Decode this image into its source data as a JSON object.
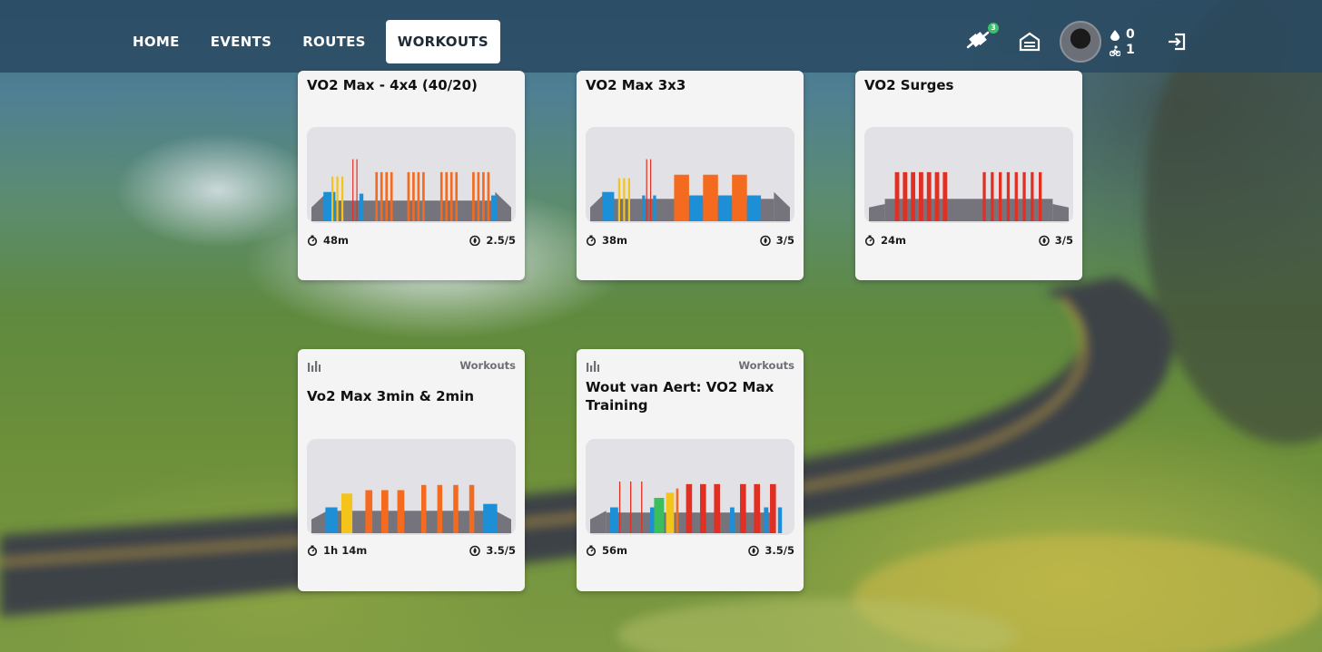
{
  "nav": {
    "items": [
      {
        "label": "HOME",
        "active": false
      },
      {
        "label": "EVENTS",
        "active": false
      },
      {
        "label": "ROUTES",
        "active": false
      },
      {
        "label": "WORKOUTS",
        "active": true
      }
    ]
  },
  "header": {
    "pair_badge": "3",
    "drops": "0",
    "rides": "1",
    "icons": [
      "pairing-icon",
      "garage-icon",
      "avatar",
      "drops-icon",
      "ride-icon",
      "logout-icon"
    ]
  },
  "zone_colors": {
    "z1": "#75747d",
    "z2": "#1c8fd6",
    "z3": "#3cbe5c",
    "z4": "#f4c41b",
    "z5": "#f46a1f",
    "z6": "#e03024"
  },
  "cards": [
    {
      "title": "VO2 Max - 4x4 (40/20)",
      "category": "",
      "duration": "48m",
      "difficulty": "2.5/5",
      "profile": {
        "ramp_start": true,
        "ramp_end": true,
        "base_level": 0.34,
        "mid_level": 0.24,
        "blocks": [
          {
            "at": 0.06,
            "w": 0.06,
            "level": 0.34,
            "zone": "z2"
          },
          {
            "at": 0.1,
            "w": 0.01,
            "level": 0.52,
            "zone": "z4"
          },
          {
            "at": 0.125,
            "w": 0.01,
            "level": 0.52,
            "zone": "z4"
          },
          {
            "at": 0.15,
            "w": 0.01,
            "level": 0.52,
            "zone": "z4"
          },
          {
            "at": 0.205,
            "w": 0.005,
            "level": 0.72,
            "zone": "z6"
          },
          {
            "at": 0.225,
            "w": 0.005,
            "level": 0.72,
            "zone": "z6"
          },
          {
            "at": 0.24,
            "w": 0.02,
            "level": 0.32,
            "zone": "z2"
          },
          {
            "at": 0.32,
            "w": 0.012,
            "level": 0.57,
            "zone": "z5"
          },
          {
            "at": 0.345,
            "w": 0.012,
            "level": 0.57,
            "zone": "z5"
          },
          {
            "at": 0.37,
            "w": 0.012,
            "level": 0.57,
            "zone": "z5"
          },
          {
            "at": 0.395,
            "w": 0.012,
            "level": 0.57,
            "zone": "z5"
          },
          {
            "at": 0.48,
            "w": 0.012,
            "level": 0.57,
            "zone": "z5"
          },
          {
            "at": 0.505,
            "w": 0.012,
            "level": 0.57,
            "zone": "z5"
          },
          {
            "at": 0.53,
            "w": 0.012,
            "level": 0.57,
            "zone": "z5"
          },
          {
            "at": 0.555,
            "w": 0.012,
            "level": 0.57,
            "zone": "z5"
          },
          {
            "at": 0.645,
            "w": 0.012,
            "level": 0.57,
            "zone": "z5"
          },
          {
            "at": 0.67,
            "w": 0.012,
            "level": 0.57,
            "zone": "z5"
          },
          {
            "at": 0.695,
            "w": 0.012,
            "level": 0.57,
            "zone": "z5"
          },
          {
            "at": 0.72,
            "w": 0.012,
            "level": 0.57,
            "zone": "z5"
          },
          {
            "at": 0.805,
            "w": 0.012,
            "level": 0.57,
            "zone": "z5"
          },
          {
            "at": 0.83,
            "w": 0.012,
            "level": 0.57,
            "zone": "z5"
          },
          {
            "at": 0.855,
            "w": 0.012,
            "level": 0.57,
            "zone": "z5"
          },
          {
            "at": 0.88,
            "w": 0.012,
            "level": 0.57,
            "zone": "z5"
          },
          {
            "at": 0.9,
            "w": 0.03,
            "level": 0.3,
            "zone": "z2"
          }
        ]
      }
    },
    {
      "title": "VO2 Max 3x3",
      "category": "",
      "duration": "38m",
      "difficulty": "3/5",
      "profile": {
        "ramp_start": true,
        "ramp_end": true,
        "base_level": 0.34,
        "mid_level": 0.26,
        "blocks": [
          {
            "at": 0.06,
            "w": 0.06,
            "level": 0.34,
            "zone": "z2"
          },
          {
            "at": 0.14,
            "w": 0.01,
            "level": 0.5,
            "zone": "z4"
          },
          {
            "at": 0.165,
            "w": 0.01,
            "level": 0.5,
            "zone": "z4"
          },
          {
            "at": 0.19,
            "w": 0.01,
            "level": 0.5,
            "zone": "z4"
          },
          {
            "at": 0.28,
            "w": 0.005,
            "level": 0.72,
            "zone": "z6"
          },
          {
            "at": 0.3,
            "w": 0.005,
            "level": 0.72,
            "zone": "z6"
          },
          {
            "at": 0.26,
            "w": 0.015,
            "level": 0.3,
            "zone": "z2"
          },
          {
            "at": 0.315,
            "w": 0.015,
            "level": 0.3,
            "zone": "z2"
          },
          {
            "at": 0.42,
            "w": 0.075,
            "level": 0.54,
            "zone": "z5"
          },
          {
            "at": 0.495,
            "w": 0.07,
            "level": 0.3,
            "zone": "z2"
          },
          {
            "at": 0.565,
            "w": 0.075,
            "level": 0.54,
            "zone": "z5"
          },
          {
            "at": 0.64,
            "w": 0.07,
            "level": 0.3,
            "zone": "z2"
          },
          {
            "at": 0.71,
            "w": 0.075,
            "level": 0.54,
            "zone": "z5"
          },
          {
            "at": 0.785,
            "w": 0.07,
            "level": 0.3,
            "zone": "z2"
          }
        ]
      }
    },
    {
      "title": "VO2 Surges",
      "category": "",
      "duration": "24m",
      "difficulty": "3/5",
      "profile": {
        "ramp_start": true,
        "ramp_end": true,
        "base_level": 0.2,
        "mid_level": 0.26,
        "blocks": [
          {
            "at": 0.13,
            "w": 0.022,
            "level": 0.57,
            "zone": "z6"
          },
          {
            "at": 0.17,
            "w": 0.022,
            "level": 0.57,
            "zone": "z6"
          },
          {
            "at": 0.21,
            "w": 0.022,
            "level": 0.57,
            "zone": "z6"
          },
          {
            "at": 0.25,
            "w": 0.022,
            "level": 0.57,
            "zone": "z6"
          },
          {
            "at": 0.29,
            "w": 0.022,
            "level": 0.57,
            "zone": "z6"
          },
          {
            "at": 0.33,
            "w": 0.022,
            "level": 0.57,
            "zone": "z6"
          },
          {
            "at": 0.37,
            "w": 0.022,
            "level": 0.57,
            "zone": "z6"
          },
          {
            "at": 0.57,
            "w": 0.015,
            "level": 0.57,
            "zone": "z6"
          },
          {
            "at": 0.61,
            "w": 0.015,
            "level": 0.57,
            "zone": "z6"
          },
          {
            "at": 0.65,
            "w": 0.015,
            "level": 0.57,
            "zone": "z6"
          },
          {
            "at": 0.69,
            "w": 0.015,
            "level": 0.57,
            "zone": "z6"
          },
          {
            "at": 0.73,
            "w": 0.015,
            "level": 0.57,
            "zone": "z6"
          },
          {
            "at": 0.77,
            "w": 0.015,
            "level": 0.57,
            "zone": "z6"
          },
          {
            "at": 0.81,
            "w": 0.015,
            "level": 0.57,
            "zone": "z6"
          },
          {
            "at": 0.85,
            "w": 0.015,
            "level": 0.57,
            "zone": "z6"
          }
        ]
      }
    },
    {
      "title": "Vo2 Max 3min & 2min",
      "category": "Workouts",
      "duration": "1h 14m",
      "difficulty": "3.5/5",
      "profile": {
        "ramp_start": true,
        "ramp_end": true,
        "base_level": 0.26,
        "mid_level": 0.26,
        "blocks": [
          {
            "at": 0.07,
            "w": 0.06,
            "level": 0.3,
            "zone": "z2"
          },
          {
            "at": 0.15,
            "w": 0.055,
            "level": 0.46,
            "zone": "z4"
          },
          {
            "at": 0.27,
            "w": 0.035,
            "level": 0.5,
            "zone": "z5"
          },
          {
            "at": 0.35,
            "w": 0.035,
            "level": 0.5,
            "zone": "z5"
          },
          {
            "at": 0.43,
            "w": 0.035,
            "level": 0.5,
            "zone": "z5"
          },
          {
            "at": 0.55,
            "w": 0.025,
            "level": 0.56,
            "zone": "z5"
          },
          {
            "at": 0.63,
            "w": 0.025,
            "level": 0.56,
            "zone": "z5"
          },
          {
            "at": 0.71,
            "w": 0.025,
            "level": 0.56,
            "zone": "z5"
          },
          {
            "at": 0.79,
            "w": 0.025,
            "level": 0.56,
            "zone": "z5"
          },
          {
            "at": 0.86,
            "w": 0.07,
            "level": 0.34,
            "zone": "z2"
          }
        ]
      }
    },
    {
      "title": "Wout van Aert: VO2 Max Training",
      "category": "Workouts",
      "duration": "56m",
      "difficulty": "3.5/5",
      "profile": {
        "ramp_start": true,
        "ramp_end": false,
        "base_level": 0.26,
        "mid_level": 0.24,
        "blocks": [
          {
            "at": 0.1,
            "w": 0.04,
            "level": 0.3,
            "zone": "z2"
          },
          {
            "at": 0.145,
            "w": 0.006,
            "level": 0.6,
            "zone": "z6"
          },
          {
            "at": 0.2,
            "w": 0.006,
            "level": 0.6,
            "zone": "z6"
          },
          {
            "at": 0.255,
            "w": 0.006,
            "level": 0.6,
            "zone": "z6"
          },
          {
            "at": 0.3,
            "w": 0.04,
            "level": 0.3,
            "zone": "z2"
          },
          {
            "at": 0.32,
            "w": 0.05,
            "level": 0.41,
            "zone": "z3"
          },
          {
            "at": 0.38,
            "w": 0.04,
            "level": 0.47,
            "zone": "z4"
          },
          {
            "at": 0.43,
            "w": 0.012,
            "level": 0.52,
            "zone": "z5"
          },
          {
            "at": 0.48,
            "w": 0.03,
            "level": 0.57,
            "zone": "z6"
          },
          {
            "at": 0.55,
            "w": 0.03,
            "level": 0.57,
            "zone": "z6"
          },
          {
            "at": 0.62,
            "w": 0.03,
            "level": 0.57,
            "zone": "z6"
          },
          {
            "at": 0.7,
            "w": 0.022,
            "level": 0.3,
            "zone": "z2"
          },
          {
            "at": 0.75,
            "w": 0.03,
            "level": 0.57,
            "zone": "z6"
          },
          {
            "at": 0.82,
            "w": 0.03,
            "level": 0.57,
            "zone": "z6"
          },
          {
            "at": 0.87,
            "w": 0.022,
            "level": 0.3,
            "zone": "z2"
          },
          {
            "at": 0.9,
            "w": 0.03,
            "level": 0.57,
            "zone": "z6"
          },
          {
            "at": 0.94,
            "w": 0.02,
            "level": 0.3,
            "zone": "z2"
          }
        ]
      }
    }
  ]
}
